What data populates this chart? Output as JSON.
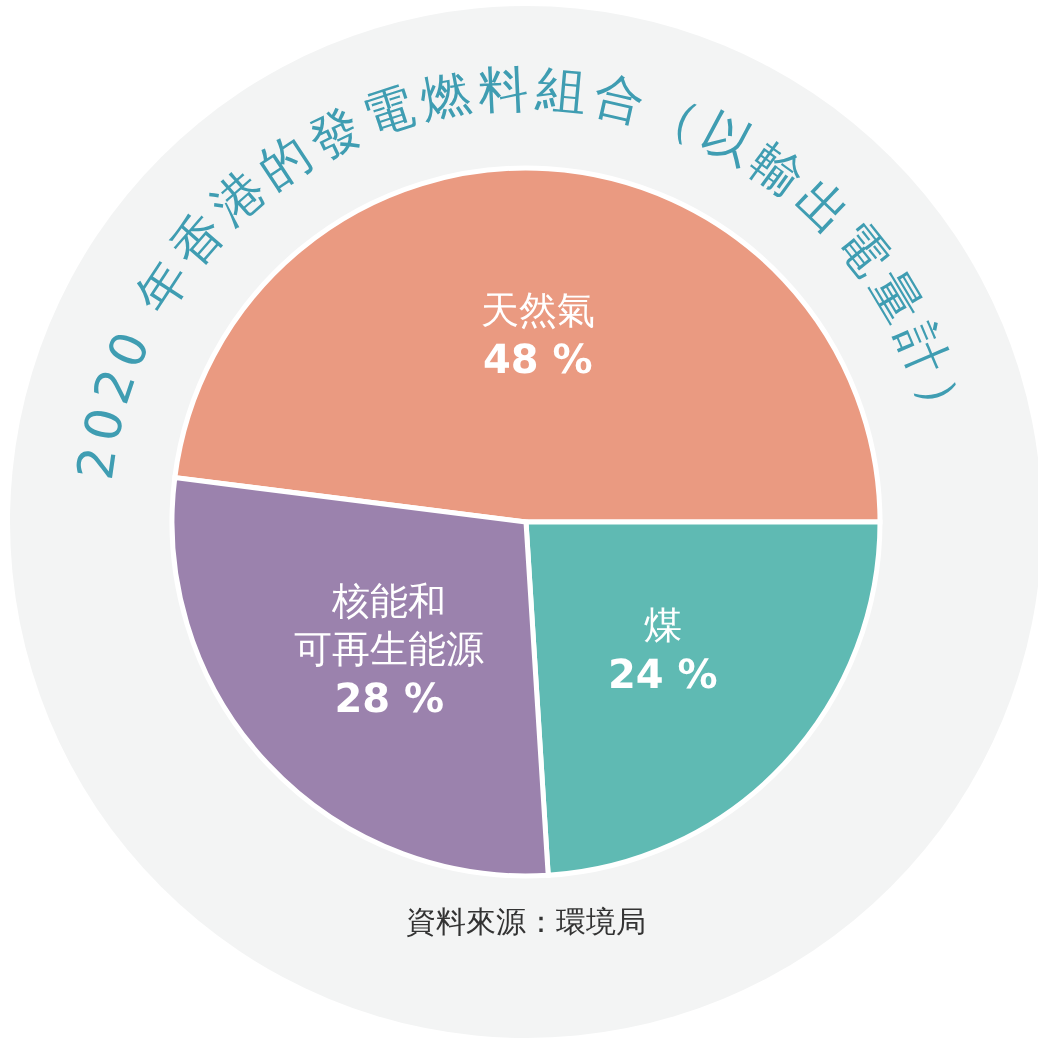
{
  "chart_data": {
    "type": "pie",
    "title": "2020 年香港的發電燃料組合（以輸出電量計）",
    "categories": [
      "天然氣",
      "煤",
      "核能和可再生能源"
    ],
    "values": [
      48,
      24,
      28
    ],
    "colors": [
      "#ea9a81",
      "#5fbab3",
      "#9b82ad"
    ],
    "value_labels": [
      "48 %",
      "24 %",
      "28 %"
    ],
    "annotations": [
      "資料來源：環境局"
    ]
  }
}
